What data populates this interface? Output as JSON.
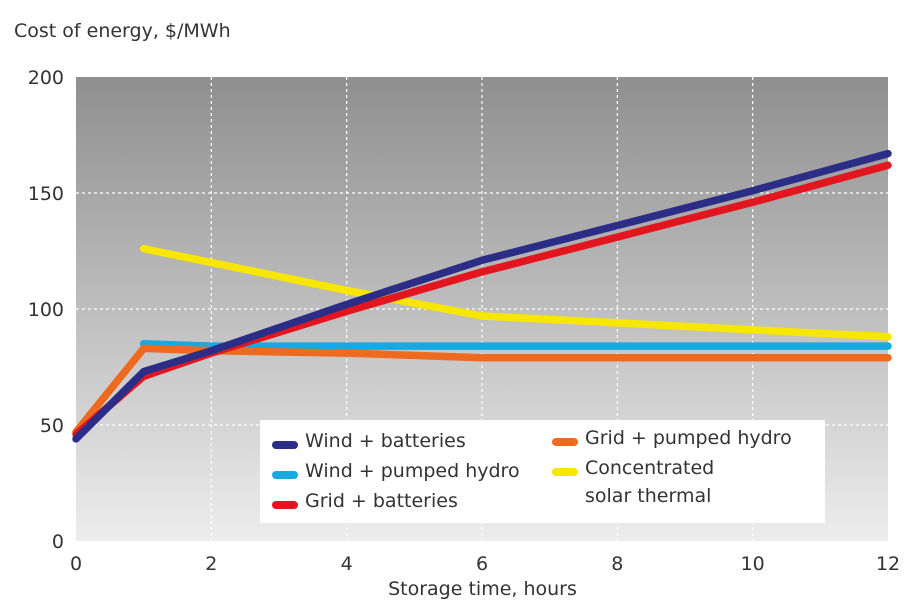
{
  "chart_data": {
    "type": "line",
    "ylabel": "Cost of energy, $/MWh",
    "xlabel": "Storage time, hours",
    "xlim": [
      0,
      12
    ],
    "ylim": [
      0,
      200
    ],
    "x_ticks": [
      "0",
      "2",
      "4",
      "6",
      "8",
      "10",
      "12"
    ],
    "y_ticks": [
      "0",
      "50",
      "100",
      "150",
      "200"
    ],
    "grid": true,
    "legend_position": "bottom-center",
    "series": [
      {
        "name": "Wind + batteries",
        "color": "#2b2d86",
        "points": [
          [
            0,
            44
          ],
          [
            1,
            73
          ],
          [
            2,
            82
          ],
          [
            4,
            102
          ],
          [
            6,
            121
          ],
          [
            8,
            136
          ],
          [
            10,
            151
          ],
          [
            12,
            167
          ]
        ]
      },
      {
        "name": "Wind + pumped hydro",
        "color": "#19a9e1",
        "points": [
          [
            1,
            85
          ],
          [
            2,
            84
          ],
          [
            4,
            84
          ],
          [
            6,
            84
          ],
          [
            8,
            84
          ],
          [
            10,
            84
          ],
          [
            12,
            84
          ]
        ]
      },
      {
        "name": "Grid + batteries",
        "color": "#e3161f",
        "points": [
          [
            0,
            46
          ],
          [
            1,
            71
          ],
          [
            2,
            81
          ],
          [
            4,
            99
          ],
          [
            6,
            116
          ],
          [
            8,
            131
          ],
          [
            10,
            146
          ],
          [
            12,
            162
          ]
        ]
      },
      {
        "name": "Grid + pumped hydro",
        "color": "#ee6a1f",
        "points": [
          [
            0,
            47
          ],
          [
            1,
            83
          ],
          [
            2,
            82
          ],
          [
            4,
            81
          ],
          [
            6,
            79
          ],
          [
            8,
            79
          ],
          [
            10,
            79
          ],
          [
            12,
            79
          ]
        ]
      },
      {
        "name": "Concentrated solar thermal",
        "name_lines": [
          "Concentrated",
          "solar thermal"
        ],
        "color": "#f7e600",
        "points": [
          [
            1,
            126
          ],
          [
            2,
            120
          ],
          [
            4,
            108
          ],
          [
            6,
            97
          ],
          [
            8,
            94
          ],
          [
            10,
            91
          ],
          [
            12,
            88
          ]
        ]
      }
    ]
  }
}
